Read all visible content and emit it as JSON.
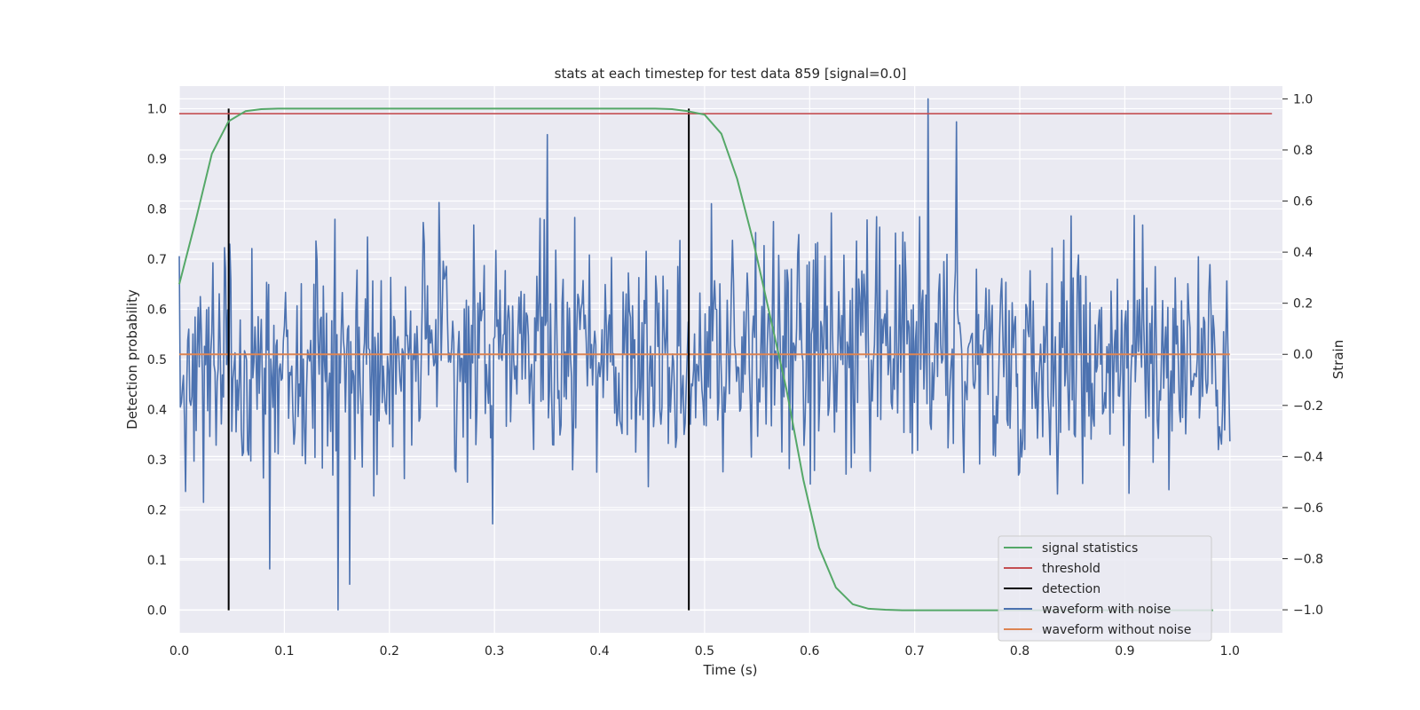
{
  "chart_data": {
    "type": "line",
    "title": "stats at each timestep for test data 859 [signal=0.0]",
    "xlabel": "Time (s)",
    "ylabel": "Detection probability",
    "ylabel_right": "Strain",
    "xlim": [
      0.0,
      1.05
    ],
    "ylim": [
      -0.045,
      1.045
    ],
    "ylim_right": [
      -1.09,
      1.05
    ],
    "x_ticks": [
      "0.0",
      "0.1",
      "0.2",
      "0.3",
      "0.4",
      "0.5",
      "0.6",
      "0.7",
      "0.8",
      "0.9",
      "1.0"
    ],
    "y_ticks": [
      "0.0",
      "0.1",
      "0.2",
      "0.3",
      "0.4",
      "0.5",
      "0.6",
      "0.7",
      "0.8",
      "0.9",
      "1.0"
    ],
    "y_ticks_right": [
      "−1.0",
      "−0.8",
      "−0.6",
      "−0.4",
      "−0.2",
      "0.0",
      "0.2",
      "0.4",
      "0.6",
      "0.8",
      "1.0"
    ],
    "grid": true,
    "legend_position": "lower-right",
    "colors": {
      "background": "#eaeaf2",
      "grid": "#ffffff",
      "signal": "#55a868",
      "threshold": "#c44e52",
      "detection": "#000000",
      "noisy": "#4c72b0",
      "clean": "#dd8452"
    },
    "legend": [
      "signal statistics",
      "threshold",
      "detection",
      "waveform with noise",
      "waveform without noise"
    ],
    "series": [
      {
        "name": "signal statistics",
        "axis": "left",
        "x": [
          0.0,
          0.016,
          0.031,
          0.047,
          0.063,
          0.078,
          0.094,
          0.109,
          0.125,
          0.141,
          0.156,
          0.2,
          0.3,
          0.4,
          0.438,
          0.453,
          0.469,
          0.484,
          0.5,
          0.516,
          0.531,
          0.547,
          0.563,
          0.578,
          0.594,
          0.609,
          0.625,
          0.641,
          0.656,
          0.672,
          0.688,
          0.703,
          0.75,
          0.8,
          0.9,
          0.984
        ],
        "y": [
          0.65,
          0.78,
          0.91,
          0.975,
          0.995,
          0.999,
          1.0,
          1.0,
          1.0,
          1.0,
          1.0,
          1.0,
          1.0,
          1.0,
          1.0,
          1.0,
          0.999,
          0.995,
          0.988,
          0.95,
          0.86,
          0.73,
          0.58,
          0.44,
          0.26,
          0.125,
          0.045,
          0.012,
          0.003,
          0.001,
          0.0,
          0.0,
          0.0,
          0.0,
          0.0,
          0.0
        ]
      },
      {
        "name": "threshold",
        "axis": "left",
        "x": [
          0.0,
          1.04
        ],
        "y": [
          0.99,
          0.99
        ]
      },
      {
        "name": "detection",
        "axis": "left",
        "events": [
          0.047,
          0.485
        ],
        "y_range": [
          0.0,
          1.0
        ]
      },
      {
        "name": "waveform with noise",
        "axis": "right",
        "x_range": [
          0.0,
          1.0
        ],
        "n_points": 1000,
        "y_range": [
          -1.0,
          1.0
        ],
        "peaks": [
          {
            "x": 0.713,
            "y": 1.0
          },
          {
            "x": 0.35,
            "y": 0.86
          },
          {
            "x": 0.74,
            "y": 0.91
          },
          {
            "x": 0.151,
            "y": -1.0
          },
          {
            "x": 0.162,
            "y": -0.9
          },
          {
            "x": 0.086,
            "y": -0.84
          }
        ]
      },
      {
        "name": "waveform without noise",
        "axis": "right",
        "x": [
          0.0,
          1.0
        ],
        "y": [
          0.0,
          0.0
        ]
      }
    ]
  }
}
